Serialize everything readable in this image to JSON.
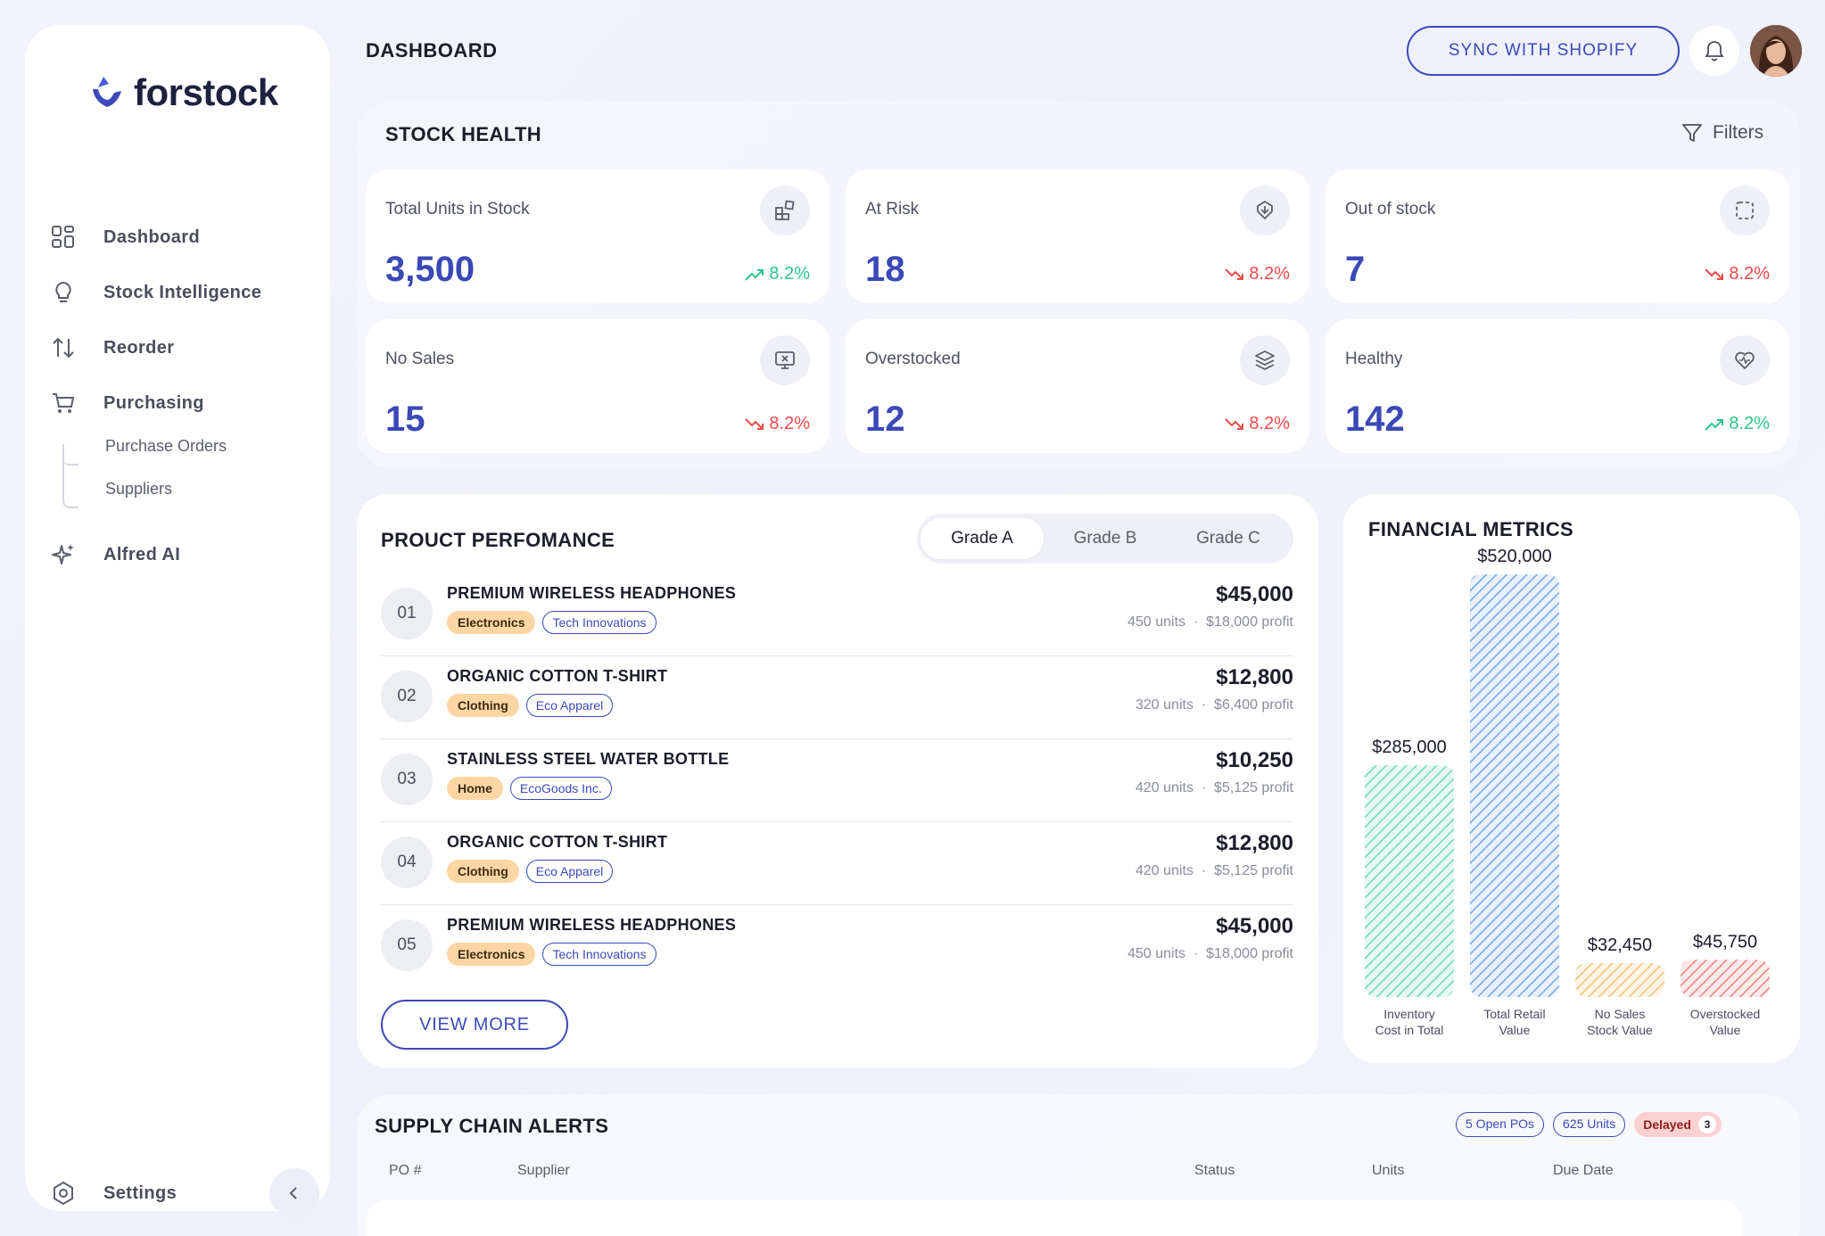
{
  "app": {
    "name": "forstock"
  },
  "sidebar": {
    "items": [
      {
        "label": "Dashboard",
        "icon": "dashboard-grid-icon"
      },
      {
        "label": "Stock Intelligence",
        "icon": "lightbulb-icon"
      },
      {
        "label": "Reorder",
        "icon": "arrows-up-down-icon"
      },
      {
        "label": "Purchasing",
        "icon": "cart-icon"
      },
      {
        "label": "Alfred AI",
        "icon": "sparkle-icon"
      }
    ],
    "sub_items": [
      "Purchase Orders",
      "Suppliers"
    ],
    "settings_label": "Settings"
  },
  "header": {
    "title": "DASHBOARD",
    "sync_label": "SYNC WITH SHOPIFY"
  },
  "stock_health": {
    "title": "STOCK HEALTH",
    "filters_label": "Filters",
    "cards": [
      {
        "label": "Total Units in Stock",
        "value": "3,500",
        "trend": "8.2%",
        "direction": "up",
        "icon": "blocks-icon"
      },
      {
        "label": "At Risk",
        "value": "18",
        "trend": "8.2%",
        "direction": "down",
        "icon": "download-shield-icon"
      },
      {
        "label": "Out of stock",
        "value": "7",
        "trend": "8.2%",
        "direction": "down",
        "icon": "empty-box-icon"
      },
      {
        "label": "No Sales",
        "value": "15",
        "trend": "8.2%",
        "direction": "down",
        "icon": "monitor-x-icon"
      },
      {
        "label": "Overstocked",
        "value": "12",
        "trend": "8.2%",
        "direction": "down",
        "icon": "layers-icon"
      },
      {
        "label": "Healthy",
        "value": "142",
        "trend": "8.2%",
        "direction": "up",
        "icon": "heart-pulse-icon"
      }
    ]
  },
  "product_performance": {
    "title": "PROUCT PERFOMANCE",
    "tabs": [
      "Grade A",
      "Grade B",
      "Grade C"
    ],
    "active_tab": "Grade A",
    "rows": [
      {
        "num": "01",
        "name": "PREMIUM WIRELESS HEADPHONES",
        "category": "Electronics",
        "vendor": "Tech Innovations",
        "price": "$45,000",
        "units": "450 units",
        "profit": "$18,000 profit"
      },
      {
        "num": "02",
        "name": "ORGANIC COTTON T-SHIRT",
        "category": "Clothing",
        "vendor": "Eco Apparel",
        "price": "$12,800",
        "units": "320 units",
        "profit": "$6,400 profit"
      },
      {
        "num": "03",
        "name": "STAINLESS STEEL WATER BOTTLE",
        "category": "Home",
        "vendor": "EcoGoods Inc.",
        "price": "$10,250",
        "units": "420 units",
        "profit": "$5,125 profit"
      },
      {
        "num": "04",
        "name": "ORGANIC COTTON T-SHIRT",
        "category": "Clothing",
        "vendor": "Eco Apparel",
        "price": "$12,800",
        "units": "420 units",
        "profit": "$5,125 profit"
      },
      {
        "num": "05",
        "name": "PREMIUM WIRELESS HEADPHONES",
        "category": "Electronics",
        "vendor": "Tech Innovations",
        "price": "$45,000",
        "units": "450 units",
        "profit": "$18,000 profit"
      }
    ],
    "view_more_label": "VIEW MORE"
  },
  "financial_metrics": {
    "title": "FINANCIAL METRICS"
  },
  "chart_data": {
    "type": "bar",
    "title": "FINANCIAL METRICS",
    "categories": [
      [
        "Inventory",
        "Cost in Total"
      ],
      [
        "Total Retail",
        "Value"
      ],
      [
        "No Sales",
        "Stock Value"
      ],
      [
        "Overstocked",
        "Value"
      ]
    ],
    "values": [
      285000,
      520000,
      32450,
      45750
    ],
    "value_labels": [
      "$285,000",
      "$520,000",
      "$32,450",
      "$45,750"
    ],
    "colors": [
      "#3fd4a0",
      "#4a8fe6",
      "#f5b246",
      "#ec5b5b"
    ],
    "ylim": [
      0,
      520000
    ],
    "grid": false
  },
  "supply_chain": {
    "title": "SUPPLY CHAIN ALERTS",
    "badges": {
      "open_pos": "5 Open POs",
      "units": "625 Units",
      "delayed_label": "Delayed",
      "delayed_count": "3"
    },
    "columns": [
      "PO #",
      "Supplier",
      "Status",
      "Units",
      "Due Date"
    ]
  },
  "colors": {
    "accent": "#3b4ab8",
    "trend_up": "#2fc38a",
    "trend_down": "#ef4a4a"
  }
}
